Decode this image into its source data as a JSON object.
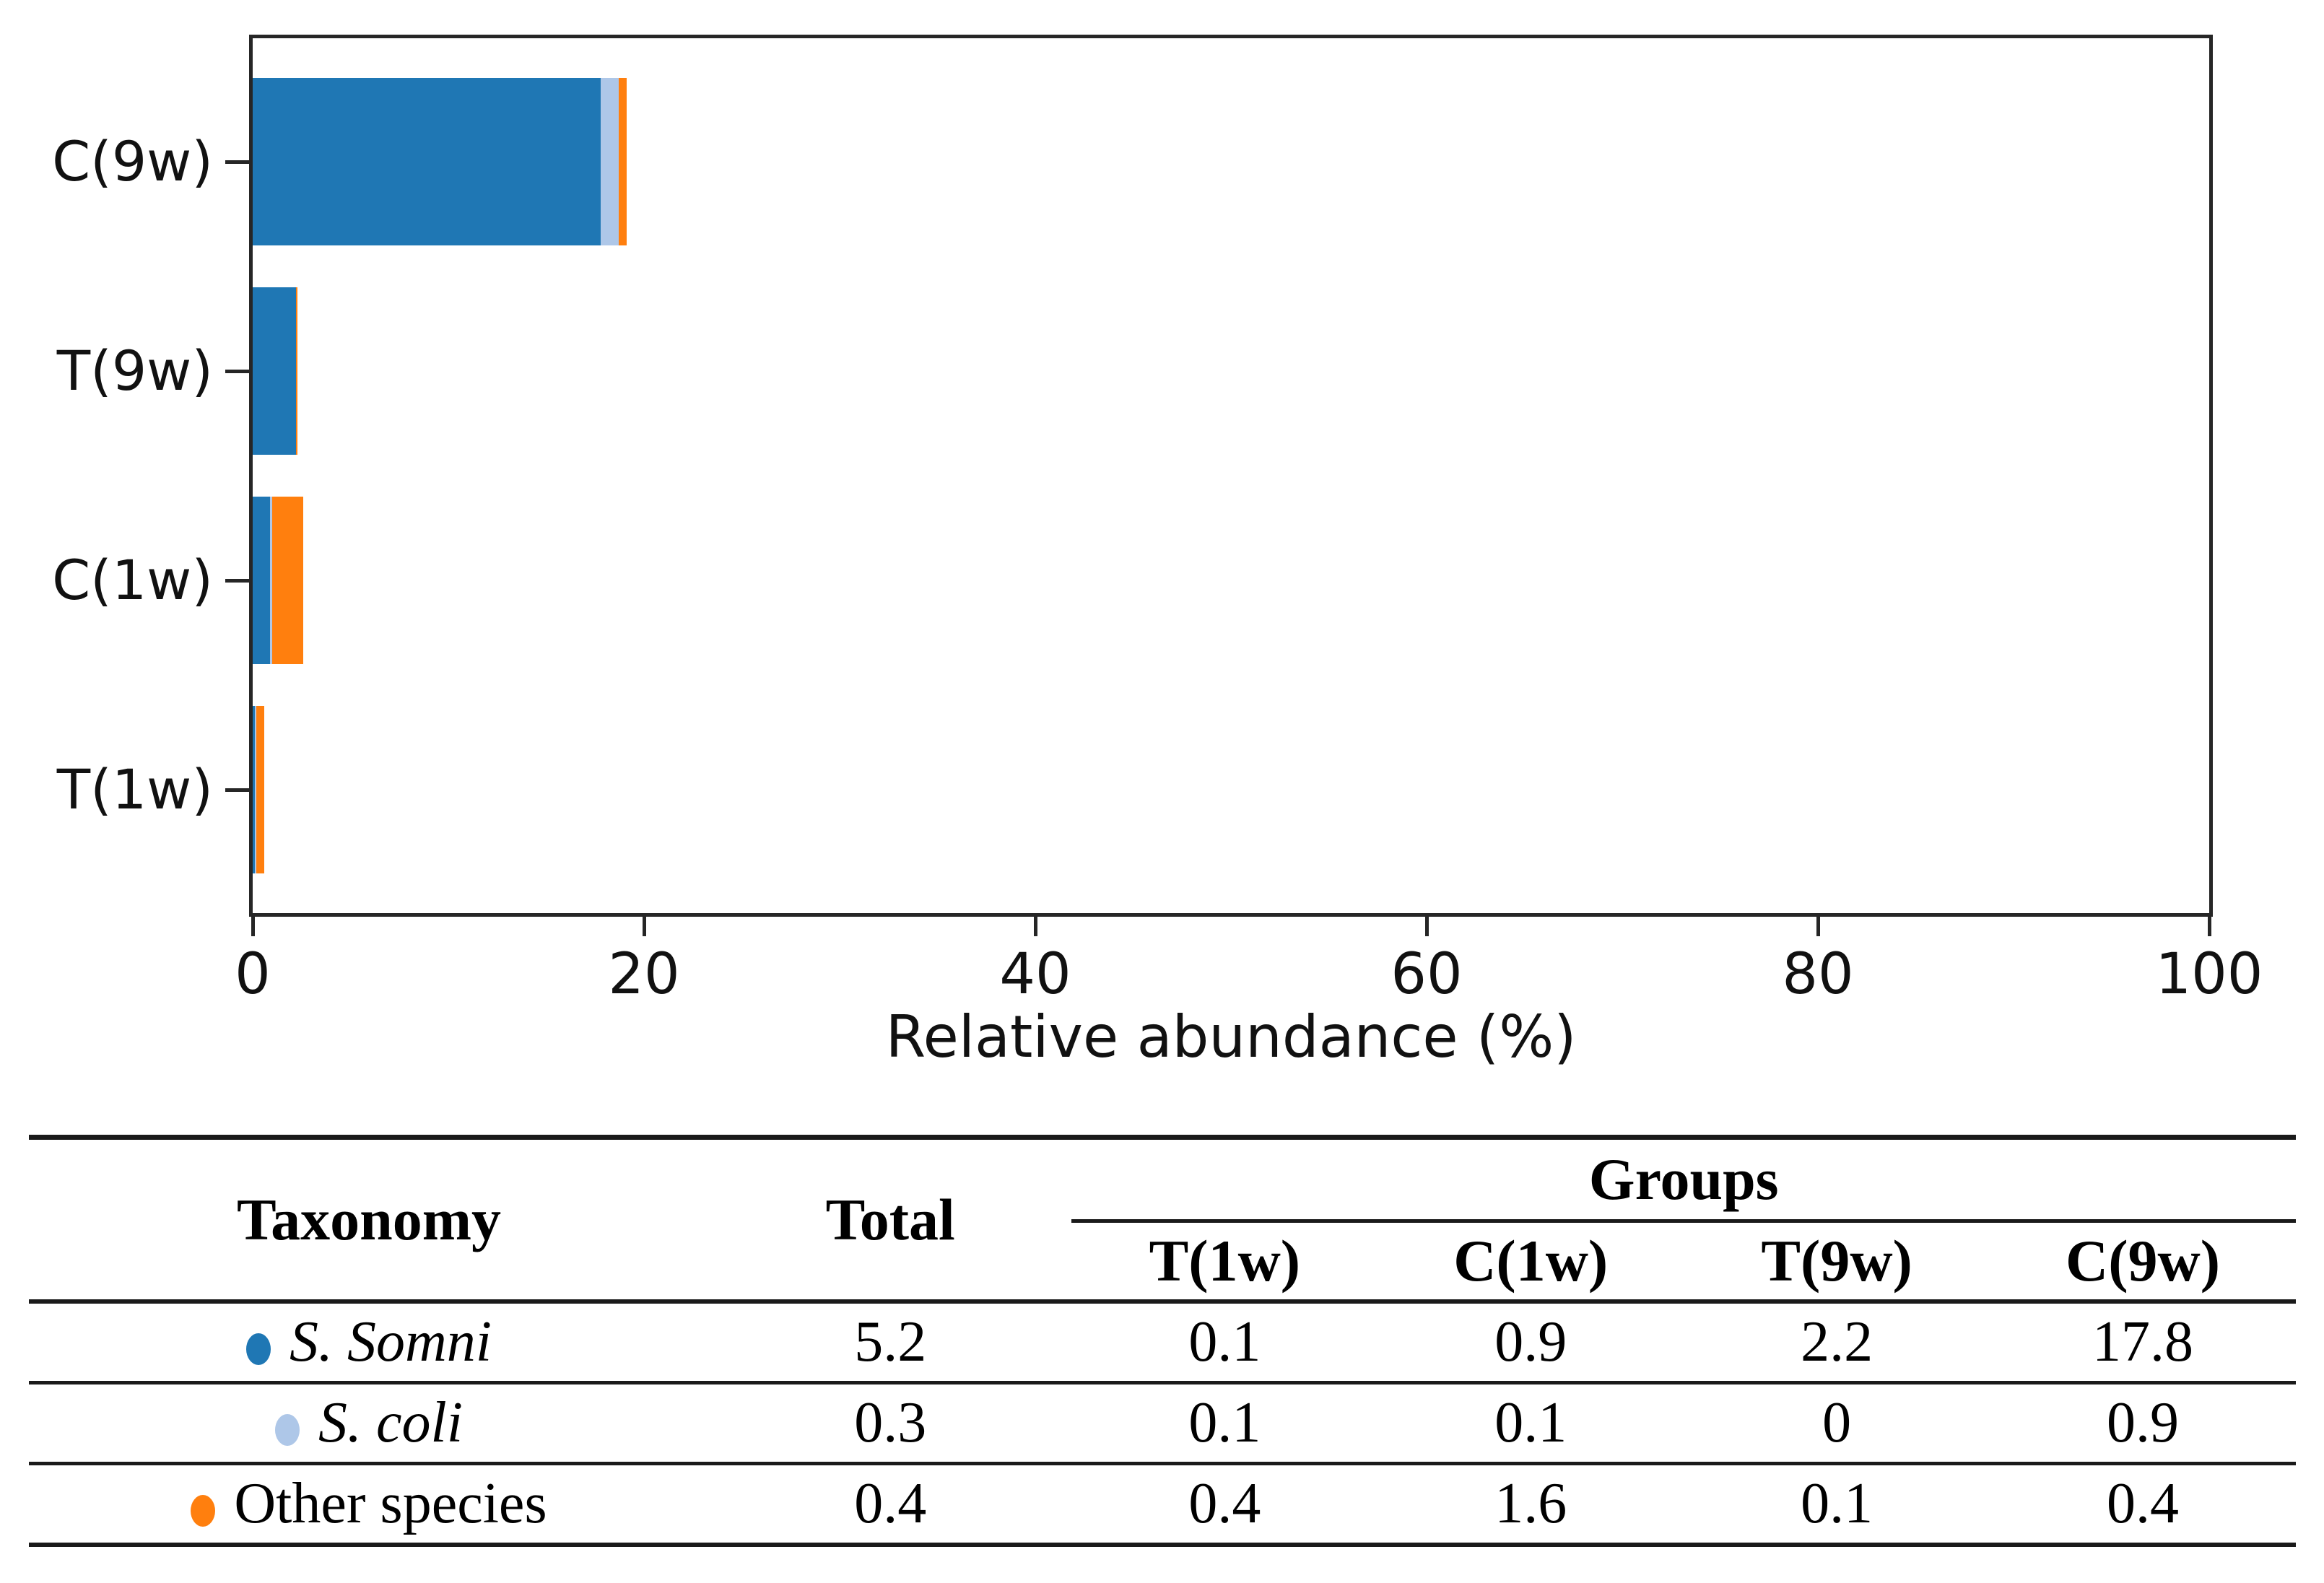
{
  "chart_data": {
    "type": "bar",
    "orientation": "horizontal",
    "stacked": true,
    "title": "",
    "xlabel": "Relative abundance (%)",
    "ylabel": "",
    "xlim": [
      0,
      100
    ],
    "xticks": [
      "0",
      "20",
      "40",
      "60",
      "80",
      "100"
    ],
    "grid": false,
    "legend": "none (table below serves as legend)",
    "categories_top_to_bottom": [
      "C(9w)",
      "T(9w)",
      "C(1w)",
      "T(1w)"
    ],
    "series": [
      {
        "name": "S. Somni",
        "color": "#1f77b4",
        "values_by_category": {
          "C(9w)": 17.8,
          "T(9w)": 2.2,
          "C(1w)": 0.9,
          "T(1w)": 0.1
        }
      },
      {
        "name": "S. coli",
        "color": "#aec7e8",
        "values_by_category": {
          "C(9w)": 0.9,
          "T(9w)": 0,
          "C(1w)": 0.1,
          "T(1w)": 0.1
        }
      },
      {
        "name": "Other species",
        "color": "#ff7f0e",
        "values_by_category": {
          "C(9w)": 0.4,
          "T(9w)": 0.1,
          "C(1w)": 1.6,
          "T(1w)": 0.4
        }
      }
    ]
  },
  "table": {
    "headers": {
      "taxonomy": "Taxonomy",
      "total": "Total",
      "groups": "Groups",
      "group_columns": [
        "T(1w)",
        "C(1w)",
        "T(9w)",
        "C(9w)"
      ]
    },
    "rows": [
      {
        "taxonomy": "S. Somni",
        "italic": true,
        "marker_color": "#1f77b4",
        "total": "5.2",
        "values": [
          "0.1",
          "0.9",
          "2.2",
          "17.8"
        ]
      },
      {
        "taxonomy": "S. coli",
        "italic": true,
        "marker_color": "#aec7e8",
        "total": "0.3",
        "values": [
          "0.1",
          "0.1",
          "0",
          "0.9"
        ]
      },
      {
        "taxonomy": "Other species",
        "italic": false,
        "marker_color": "#ff7f0e",
        "total": "0.4",
        "values": [
          "0.4",
          "1.6",
          "0.1",
          "0.4"
        ]
      }
    ]
  },
  "colors": {
    "axis": "#262626",
    "table_line": "#1a1a1a",
    "text": "#111111",
    "background": "#ffffff"
  }
}
